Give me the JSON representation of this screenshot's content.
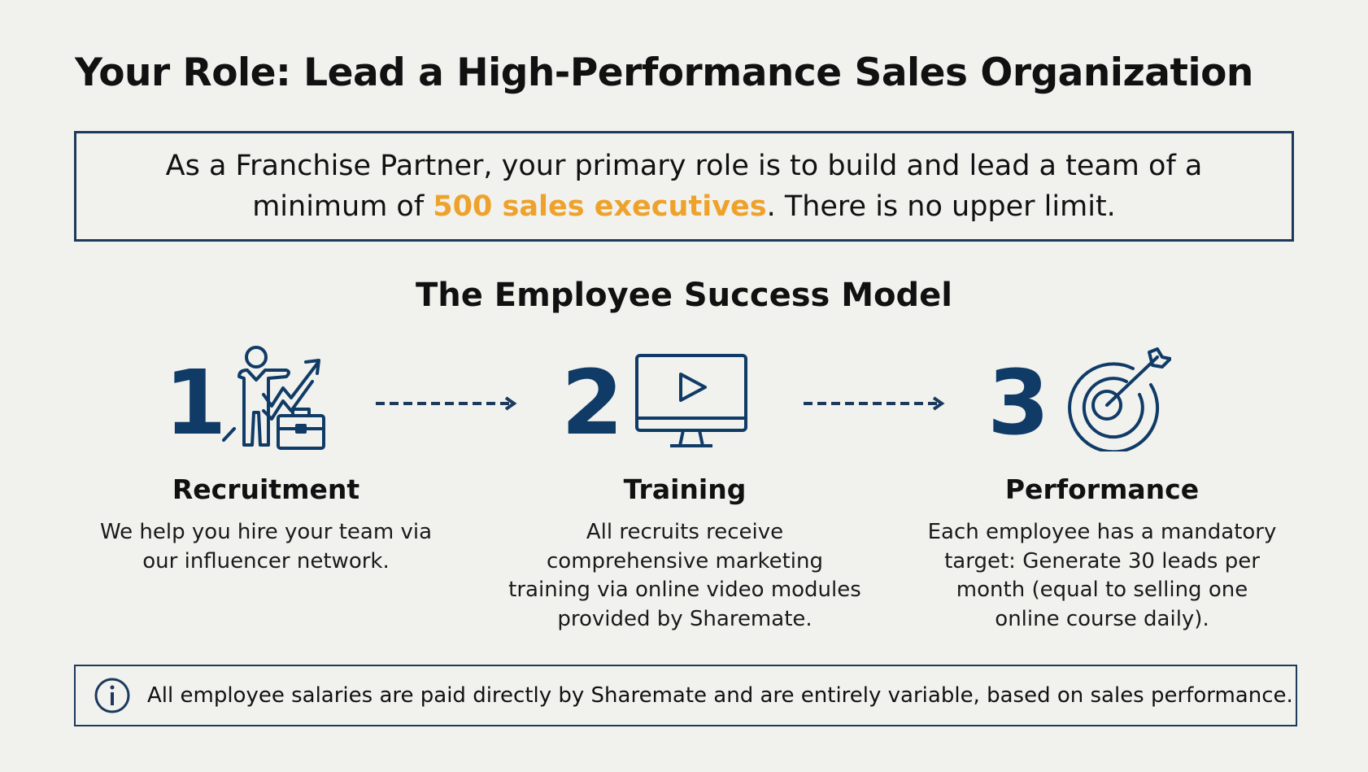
{
  "title": "Your Role: Lead a High-Performance Sales Organization",
  "intro": {
    "before": "As a Franchise Partner, your primary role is to build and lead a team of a minimum of ",
    "highlight": "500 sales executives",
    "after": ". There is no upper limit.",
    "highlight_color": "#eea22b"
  },
  "section_title": "The Employee Success Model",
  "steps": [
    {
      "number": "1",
      "icon": "businessman-growth-briefcase-icon",
      "heading": "Recruitment",
      "description": "We help you hire your team via our influencer network."
    },
    {
      "number": "2",
      "icon": "monitor-play-icon",
      "heading": "Training",
      "description": "All recruits receive comprehensive marketing training via online video modules provided by Sharemate."
    },
    {
      "number": "3",
      "icon": "target-arrow-icon",
      "heading": "Performance",
      "description": "Each employee has a mandatory target: Generate 30 leads per month (equal to selling one online course daily)."
    }
  ],
  "note": {
    "icon": "info-icon",
    "text": "All employee salaries are paid directly by Sharemate and are entirely variable, based on sales performance."
  },
  "colors": {
    "navy": "#0f3b66",
    "border": "#1c3a5c",
    "background": "#f1f1ee"
  }
}
